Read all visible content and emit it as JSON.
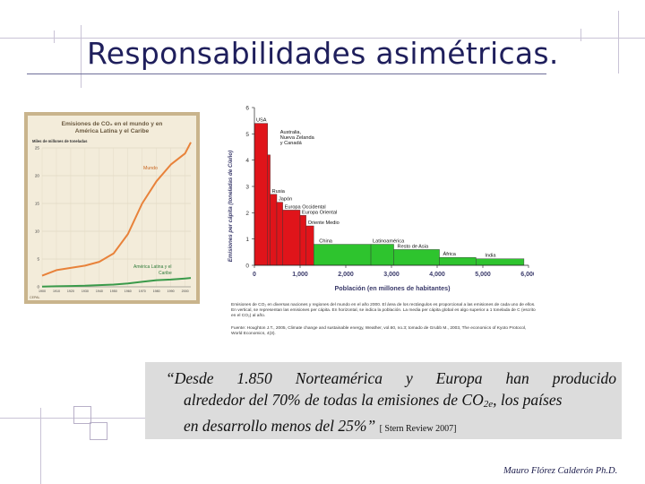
{
  "slide": {
    "title": "Responsabilidades asimétricas.",
    "author": "Mauro Flórez Calderón Ph.D.",
    "quote": {
      "line1": "“Desde 1.850 Norteamérica y Europa han producido",
      "line2_a": "alrededor del 70% de todas la emisiones de CO",
      "line2_sub": "2e",
      "line2_b": ", los países",
      "line3": "en desarrollo menos del 25%”",
      "citation": "[ Stern Review 2007]"
    }
  },
  "colors": {
    "accent": "#1f1f5c",
    "mundo": "#e8823a",
    "latam": "#3a9a4a",
    "developed": "#e0141a",
    "developing": "#2ec42e"
  },
  "left_chart": {
    "title": "Emisiones de CO₂ en el mundo y en América Latina y el Caribe",
    "unit_label": "Miles de millones de toneladas",
    "series_mundo": "Mundo",
    "series_latam": "América Latina y el Caribe",
    "source": "CEPAL"
  },
  "right_chart": {
    "ylabel": "Emisiones per cápita (toneladas de C/año)",
    "xlabel": "Población (en millones de habitantes)",
    "note": "Emisiones de CO₂ en diversas naciones y regiones del mundo en el año 2000. El área de los rectángulos es proporcional a las emisiones de cada uno de ellos. En vertical, se representan las emisiones per cápita. En horizontal, se indica la población. La media per cápita global es algo superior a 1 tonelada de C (escrito en el CO₂) al año.",
    "source": "Fuente: Houghton J.T., 2005, Climate change and sustainable energy, Weather, vol.60, no.3; tomado de Grubb M., 2003, The economics of Kyoto Protocol, World Economics, 4(3)."
  },
  "chart_data": [
    {
      "type": "line",
      "title": "Emisiones de CO₂ en el mundo y en América Latina y el Caribe",
      "ylabel": "Miles de millones de toneladas",
      "xlabel": "",
      "x": [
        1900,
        1910,
        1920,
        1930,
        1940,
        1950,
        1960,
        1970,
        1980,
        1990,
        2000,
        2004
      ],
      "x_ticks": [
        "1900",
        "1910",
        "1920",
        "1930",
        "1940",
        "1950",
        "1960",
        "1970",
        "1980",
        "1990",
        "2000"
      ],
      "y_ticks": [
        0,
        5,
        10,
        15,
        20,
        25
      ],
      "ylim": [
        0,
        25
      ],
      "series": [
        {
          "name": "Mundo",
          "values": [
            2,
            3,
            3.4,
            3.8,
            4.5,
            6,
            9.5,
            15,
            19,
            22,
            24,
            26
          ]
        },
        {
          "name": "América Latina y el Caribe",
          "values": [
            0.05,
            0.1,
            0.15,
            0.2,
            0.3,
            0.4,
            0.6,
            0.9,
            1.2,
            1.3,
            1.5,
            1.6
          ]
        }
      ],
      "grid": true,
      "legend": "inline"
    },
    {
      "type": "bar",
      "title": "",
      "ylabel": "Emisiones per cápita (toneladas de C/año)",
      "xlabel": "Población (en millones de habitantes)",
      "ylim": [
        0,
        6
      ],
      "xlim": [
        0,
        6000
      ],
      "y_ticks": [
        0,
        1,
        2,
        3,
        4,
        5,
        6
      ],
      "x_ticks": [
        "0",
        "1,000",
        "2,000",
        "3,000",
        "4,000",
        "5,000",
        "6,000"
      ],
      "bars": [
        {
          "label": "USA",
          "x0": 0,
          "x1": 290,
          "value": 5.4,
          "group": "developed"
        },
        {
          "label": "Australia, Nueva Zelanda y Canadá",
          "x0": 290,
          "x1": 345,
          "value": 4.2,
          "group": "developed"
        },
        {
          "label": "Rusia",
          "x0": 345,
          "x1": 490,
          "value": 2.7,
          "group": "developed"
        },
        {
          "label": "Japón",
          "x0": 490,
          "x1": 620,
          "value": 2.4,
          "group": "developed"
        },
        {
          "label": "Europa Occidental",
          "x0": 620,
          "x1": 1000,
          "value": 2.1,
          "group": "developed"
        },
        {
          "label": "Europa Oriental",
          "x0": 1000,
          "x1": 1130,
          "value": 1.9,
          "group": "developed"
        },
        {
          "label": "Oriente Medio",
          "x0": 1130,
          "x1": 1300,
          "value": 1.5,
          "group": "developed"
        },
        {
          "label": "China",
          "x0": 1300,
          "x1": 2550,
          "value": 0.8,
          "group": "developing"
        },
        {
          "label": "Latinoamérica",
          "x0": 2550,
          "x1": 3050,
          "value": 0.8,
          "group": "developing"
        },
        {
          "label": "Resto de Asia",
          "x0": 3050,
          "x1": 4050,
          "value": 0.6,
          "group": "developing"
        },
        {
          "label": "África",
          "x0": 4050,
          "x1": 4850,
          "value": 0.3,
          "group": "developing"
        },
        {
          "label": "India",
          "x0": 4850,
          "x1": 5900,
          "value": 0.25,
          "group": "developing"
        }
      ]
    }
  ]
}
